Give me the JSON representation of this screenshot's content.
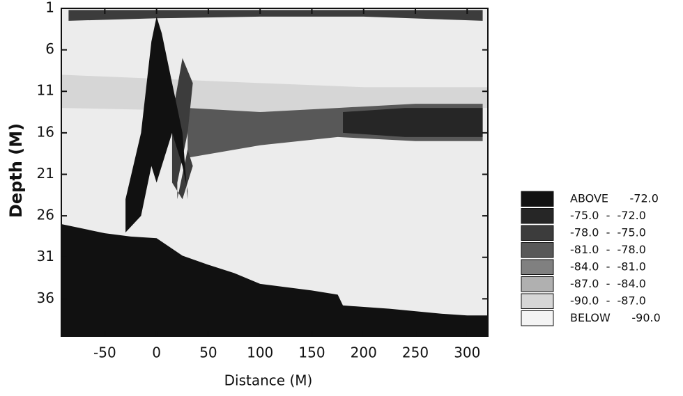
{
  "chart_data": {
    "type": "echogram",
    "xlabel": "Distance (M)",
    "ylabel": "Depth (M)",
    "xlim": [
      -92,
      320
    ],
    "ylim": [
      1,
      40.5
    ],
    "xticks": [
      -50,
      0,
      50,
      100,
      150,
      200,
      250,
      300
    ],
    "yticks": [
      1,
      6,
      11,
      16,
      21,
      26,
      31,
      36
    ],
    "background_color": "#ececec",
    "legend": {
      "position": "right",
      "classes": [
        {
          "label": "ABOVE      -72.0",
          "color": "#111111"
        },
        {
          "label": "-75.0  -  -72.0",
          "color": "#262626"
        },
        {
          "label": "-78.0  -  -75.0",
          "color": "#3c3c3c"
        },
        {
          "label": "-81.0  -  -78.0",
          "color": "#585858"
        },
        {
          "label": "-84.0  -  -81.0",
          "color": "#808080"
        },
        {
          "label": "-87.0  -  -84.0",
          "color": "#b0b0b0"
        },
        {
          "label": "-90.0  -  -87.0",
          "color": "#d6d6d6"
        },
        {
          "label": "BELOW      -90.0",
          "color": "#f4f4f4"
        }
      ]
    },
    "echoes": [
      {
        "class": 6,
        "x": [
          -92,
          100,
          200,
          320
        ],
        "top": [
          9,
          10,
          10.5,
          10.5
        ],
        "bottom": [
          13,
          13.5,
          13,
          13
        ]
      },
      {
        "class": 3,
        "x": [
          30,
          100,
          175,
          250,
          315
        ],
        "top": [
          13,
          13.5,
          13,
          12.5,
          12.5
        ],
        "bottom": [
          19,
          17.5,
          16.5,
          17,
          17
        ]
      },
      {
        "class": 1,
        "x": [
          180,
          240,
          315
        ],
        "top": [
          13.5,
          13,
          13
        ],
        "bottom": [
          16,
          16.5,
          16.5
        ]
      },
      {
        "class": 2,
        "x": [
          -85,
          0,
          100,
          200,
          315
        ],
        "top": [
          1.2,
          1.2,
          1.2,
          1.2,
          1.2
        ],
        "bottom": [
          2.5,
          2.2,
          2,
          2,
          2.5
        ]
      },
      {
        "class": 2,
        "x": [
          15,
          25,
          35,
          30,
          20
        ],
        "top": [
          14,
          7,
          10,
          16,
          22
        ],
        "bottom": [
          22,
          24,
          20,
          18,
          24
        ]
      },
      {
        "class": 0,
        "x": [
          -30,
          -15,
          -5,
          0,
          5,
          15,
          25,
          30
        ],
        "top": [
          24,
          16,
          5,
          2,
          4,
          10,
          16,
          24
        ],
        "bottom": [
          28,
          26,
          20,
          22,
          20,
          16,
          20,
          23
        ]
      }
    ],
    "bottom": {
      "x": [
        -92,
        -50,
        -25,
        0,
        25,
        50,
        75,
        100,
        125,
        150,
        175,
        180,
        225,
        275,
        300,
        320
      ],
      "depth": [
        27,
        28.1,
        28.5,
        28.7,
        30.8,
        31.9,
        32.9,
        34.2,
        34.6,
        35,
        35.5,
        36.8,
        37.2,
        37.8,
        38,
        38
      ],
      "class": 0
    }
  }
}
